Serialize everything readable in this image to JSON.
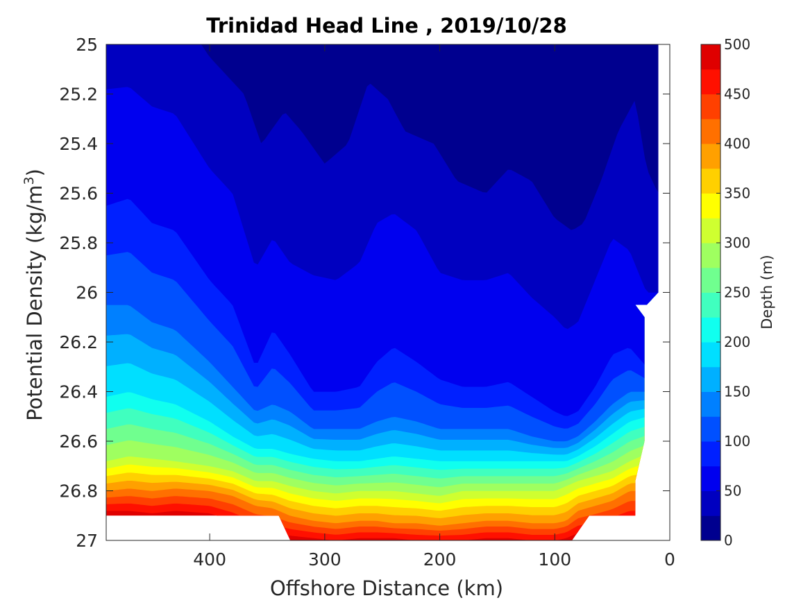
{
  "chart_data": {
    "type": "heatmap",
    "title": "Trinidad Head Line , 2019/10/28",
    "xlabel": "Offshore Distance (km)",
    "ylabel_main": "Potential Density (kg/m",
    "ylabel_sup": "3",
    "ylabel_close": ")",
    "xlim": [
      490,
      0
    ],
    "ylim": [
      25,
      27
    ],
    "x_reversed": true,
    "y_reversed": true,
    "xticks": [
      400,
      300,
      200,
      100,
      0
    ],
    "xtick_labels": [
      "400",
      "300",
      "200",
      "100",
      "0"
    ],
    "yticks": [
      25,
      25.2,
      25.4,
      25.6,
      25.8,
      26,
      26.2,
      26.4,
      26.6,
      26.8,
      27
    ],
    "ytick_labels": [
      "25",
      "25.2",
      "25.4",
      "25.6",
      "25.8",
      "26",
      "26.2",
      "26.4",
      "26.6",
      "26.8",
      "27"
    ],
    "colorbar": {
      "label": "Depth (m)",
      "range": [
        0,
        500
      ],
      "ticks": [
        0,
        50,
        100,
        150,
        200,
        250,
        300,
        350,
        400,
        450,
        500
      ],
      "tick_labels": [
        "0",
        "50",
        "100",
        "150",
        "200",
        "250",
        "300",
        "350",
        "400",
        "450",
        "500"
      ],
      "levels": [
        0,
        25,
        50,
        75,
        100,
        125,
        150,
        175,
        200,
        225,
        250,
        275,
        300,
        325,
        350,
        375,
        400,
        425,
        450,
        475,
        500
      ],
      "colors": [
        "#00008f",
        "#0000c0",
        "#0000ef",
        "#0020ff",
        "#0050ff",
        "#0080ff",
        "#00b0ff",
        "#00dfff",
        "#10ffef",
        "#40ffbf",
        "#70ff8f",
        "#9fff60",
        "#cfff30",
        "#ffff00",
        "#ffd000",
        "#ffa000",
        "#ff7000",
        "#ff4000",
        "#ff1000",
        "#df0000"
      ],
      "colormap": "jet"
    },
    "contour_boundaries": [
      {
        "level": 25,
        "x": [
          490,
          410,
          400,
          370,
          355,
          335,
          320,
          300,
          280,
          262,
          245,
          230,
          205,
          185,
          160,
          140,
          120,
          100,
          85,
          75,
          60,
          45,
          30,
          20,
          10
        ],
        "y": [
          24.98,
          24.98,
          25.05,
          25.2,
          25.4,
          25.27,
          25.35,
          25.48,
          25.4,
          25.15,
          25.22,
          25.35,
          25.4,
          25.55,
          25.6,
          25.5,
          25.55,
          25.7,
          25.75,
          25.72,
          25.55,
          25.35,
          25.22,
          25.5,
          25.6
        ]
      },
      {
        "level": 50,
        "x": [
          490,
          470,
          450,
          430,
          400,
          380,
          360,
          345,
          330,
          310,
          290,
          270,
          255,
          240,
          220,
          200,
          180,
          160,
          140,
          120,
          100,
          90,
          80,
          65,
          50,
          35,
          20,
          10
        ],
        "y": [
          25.18,
          25.17,
          25.25,
          25.28,
          25.5,
          25.6,
          25.9,
          25.78,
          25.88,
          25.93,
          25.95,
          25.88,
          25.72,
          25.68,
          25.75,
          25.92,
          25.95,
          25.95,
          25.92,
          26.02,
          26.1,
          26.15,
          26.12,
          25.95,
          25.78,
          25.83,
          26.0,
          26.0
        ]
      },
      {
        "level": 75,
        "x": [
          490,
          470,
          450,
          430,
          400,
          380,
          360,
          345,
          330,
          310,
          290,
          270,
          255,
          240,
          220,
          200,
          180,
          160,
          140,
          120,
          100,
          90,
          80,
          65,
          50,
          35,
          20
        ],
        "y": [
          25.65,
          25.62,
          25.72,
          25.75,
          25.95,
          26.05,
          26.3,
          26.15,
          26.25,
          26.4,
          26.4,
          26.38,
          26.28,
          26.22,
          26.28,
          26.35,
          26.38,
          26.38,
          26.36,
          26.42,
          26.48,
          26.5,
          26.48,
          26.38,
          26.25,
          26.22,
          26.3
        ]
      },
      {
        "level": 125,
        "x": [
          490,
          470,
          450,
          430,
          400,
          380,
          360,
          345,
          330,
          310,
          290,
          270,
          255,
          240,
          220,
          200,
          180,
          160,
          140,
          120,
          100,
          90,
          80,
          65,
          50,
          35,
          20
        ],
        "y": [
          26.05,
          26.05,
          26.12,
          26.15,
          26.28,
          26.38,
          26.48,
          26.45,
          26.48,
          26.55,
          26.55,
          26.55,
          26.52,
          26.5,
          26.52,
          26.55,
          26.55,
          26.55,
          26.55,
          26.58,
          26.6,
          26.6,
          26.58,
          26.52,
          26.45,
          26.4,
          26.4
        ]
      },
      {
        "level": 200,
        "x": [
          490,
          470,
          450,
          430,
          400,
          380,
          360,
          345,
          330,
          310,
          290,
          270,
          255,
          240,
          220,
          200,
          180,
          160,
          140,
          120,
          100,
          90,
          80,
          65,
          50,
          35,
          20
        ],
        "y": [
          26.42,
          26.4,
          26.43,
          26.45,
          26.52,
          26.58,
          26.63,
          26.63,
          26.65,
          26.67,
          26.68,
          26.68,
          26.67,
          26.66,
          26.67,
          26.68,
          26.68,
          26.68,
          26.68,
          26.68,
          26.68,
          26.68,
          26.66,
          26.62,
          26.57,
          26.52,
          26.5
        ]
      },
      {
        "level": 300,
        "x": [
          490,
          470,
          450,
          430,
          400,
          380,
          360,
          345,
          330,
          310,
          290,
          270,
          255,
          240,
          220,
          200,
          180,
          160,
          140,
          120,
          100,
          90,
          80,
          65,
          50,
          35,
          20
        ],
        "y": [
          26.68,
          26.66,
          26.67,
          26.68,
          26.7,
          26.72,
          26.76,
          26.76,
          26.78,
          26.8,
          26.81,
          26.8,
          26.8,
          26.8,
          26.81,
          26.82,
          26.8,
          26.8,
          26.8,
          26.8,
          26.8,
          26.78,
          26.76,
          26.74,
          26.72,
          26.68,
          26.65
        ]
      },
      {
        "level": 400,
        "x": [
          490,
          470,
          450,
          430,
          400,
          380,
          360,
          345,
          330,
          310,
          290,
          270,
          255,
          240,
          220,
          200,
          180,
          160,
          140,
          120,
          100,
          90,
          80,
          65,
          50,
          35
        ],
        "y": [
          26.8,
          26.79,
          26.8,
          26.79,
          26.8,
          26.82,
          26.86,
          26.87,
          26.9,
          26.92,
          26.93,
          26.92,
          26.92,
          26.93,
          26.93,
          26.94,
          26.93,
          26.92,
          26.92,
          26.93,
          26.93,
          26.92,
          26.88,
          26.86,
          26.84,
          26.8
        ]
      },
      {
        "level": 475,
        "x": [
          490,
          470,
          450,
          430,
          400,
          380,
          360,
          345,
          330,
          310,
          290,
          270,
          255,
          240,
          220,
          200,
          180,
          160,
          140,
          120,
          100,
          90,
          80,
          65,
          50,
          35
        ],
        "y": [
          26.88,
          26.88,
          26.89,
          26.88,
          26.89,
          26.92,
          26.96,
          26.97,
          26.98,
          26.99,
          27.0,
          26.99,
          26.99,
          26.99,
          27.0,
          27.0,
          27.0,
          26.99,
          26.99,
          27.0,
          27.0,
          26.99,
          26.97,
          26.96,
          26.94,
          26.92
        ]
      }
    ],
    "data_extent": {
      "x": [
        490,
        395,
        380,
        370,
        362,
        340,
        330,
        90,
        85,
        70,
        30,
        30,
        22,
        22,
        30,
        30,
        20,
        10,
        10
      ],
      "y": [
        26.9,
        26.9,
        26.9,
        26.9,
        26.9,
        26.9,
        27.0,
        27.0,
        27.0,
        26.9,
        26.9,
        26.76,
        26.6,
        26.1,
        26.05,
        26.05,
        26.05,
        26.0,
        25.0
      ]
    }
  }
}
